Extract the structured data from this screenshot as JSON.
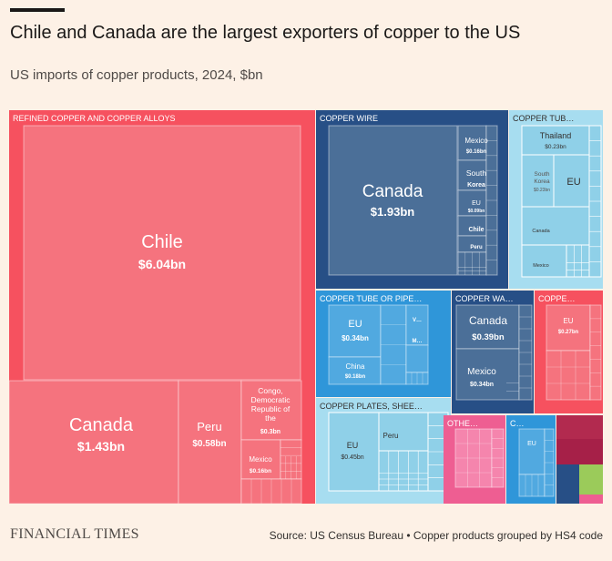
{
  "header": {
    "title": "Chile and Canada are the largest exporters of copper to the US",
    "subtitle": "US imports of copper products, 2024, $bn"
  },
  "footer": {
    "brand": "FINANCIAL TIMES",
    "source": "Source: US Census Bureau • Copper products grouped by HS4 code"
  },
  "chart_data": {
    "type": "treemap",
    "unit": "$bn",
    "groups": [
      {
        "name": "REFINED COPPER AND COPPER ALLOYS",
        "color": "#f6515f",
        "items": [
          {
            "name": "Chile",
            "value": 6.04,
            "value_label": "$6.04bn"
          },
          {
            "name": "Canada",
            "value": 1.43,
            "value_label": "$1.43bn"
          },
          {
            "name": "Peru",
            "value": 0.58,
            "value_label": "$0.58bn"
          },
          {
            "name": "Congo, Democratic Republic of the",
            "value": 0.3,
            "value_label": "$0.3bn"
          },
          {
            "name": "Mexico",
            "value": 0.16,
            "value_label": "$0.16bn"
          }
        ]
      },
      {
        "name": "COPPER WIRE",
        "color": "#274f86",
        "items": [
          {
            "name": "Canada",
            "value": 1.93,
            "value_label": "$1.93bn"
          },
          {
            "name": "Mexico",
            "value": 0.16,
            "value_label": "$0.16bn"
          },
          {
            "name": "South Korea",
            "value": 0.12
          },
          {
            "name": "EU",
            "value": 0.09,
            "value_label": "$0.09bn"
          },
          {
            "name": "Chile",
            "value": 0.06
          },
          {
            "name": "Peru",
            "value": 0.05
          }
        ]
      },
      {
        "name": "COPPER TUB…",
        "color": "#a7ddf0",
        "items": [
          {
            "name": "Thailand",
            "value": 0.23,
            "value_label": "$0.23bn"
          },
          {
            "name": "South Korea",
            "value": 0.23,
            "value_label": "$0.23bn"
          },
          {
            "name": "EU",
            "value": 0.2
          },
          {
            "name": "Canada",
            "value": 0.12
          },
          {
            "name": "Mexico",
            "value": 0.08
          }
        ]
      },
      {
        "name": "COPPER TUBE OR PIPE…",
        "color": "#2f96d9",
        "items": [
          {
            "name": "EU",
            "value": 0.34,
            "value_label": "$0.34bn"
          },
          {
            "name": "China",
            "value": 0.18,
            "value_label": "$0.18bn"
          },
          {
            "name": "V…",
            "value": 0.06
          },
          {
            "name": "M…",
            "value": 0.05
          }
        ]
      },
      {
        "name": "COPPER WA…",
        "color": "#274f86",
        "items": [
          {
            "name": "Canada",
            "value": 0.39,
            "value_label": "$0.39bn"
          },
          {
            "name": "Mexico",
            "value": 0.34,
            "value_label": "$0.34bn"
          }
        ]
      },
      {
        "name": "COPPE…",
        "color": "#f6515f",
        "items": [
          {
            "name": "EU",
            "value": 0.27,
            "value_label": "$0.27bn"
          }
        ]
      },
      {
        "name": "COPPER PLATES, SHEE…",
        "color": "#a7ddf0",
        "items": [
          {
            "name": "EU",
            "value": 0.45,
            "value_label": "$0.45bn"
          },
          {
            "name": "Peru",
            "value": 0.2
          }
        ]
      },
      {
        "name": "OTHE…",
        "color": "#ee5e92",
        "items": []
      },
      {
        "name": "C…",
        "color": "#2f96d9",
        "items": [
          {
            "name": "EU",
            "value": 0.1
          }
        ]
      }
    ]
  }
}
